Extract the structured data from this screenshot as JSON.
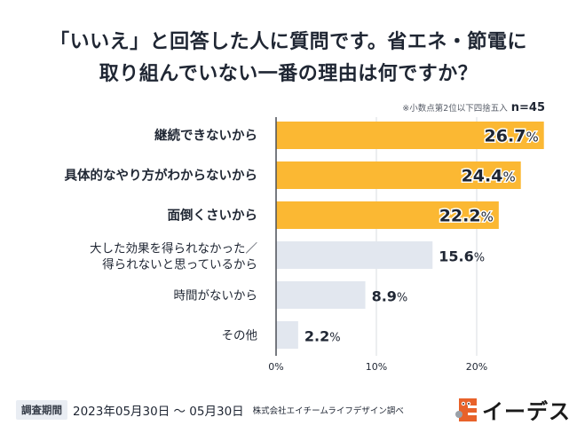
{
  "title": {
    "line1": "「いいえ」と回答した人に質問です。省エネ・節電に",
    "line2": "取り組んでいない一番の理由は何ですか？"
  },
  "note": {
    "rounding": "※小数点第2位以下四捨五入",
    "n": "n=45"
  },
  "colors": {
    "highlight": "#FBB833",
    "normal": "#E2E7EF",
    "text": "#1F2633",
    "axis": "#4a4f57",
    "grid": "#d9dce1"
  },
  "chart_data": {
    "type": "bar",
    "orientation": "horizontal",
    "title": "「いいえ」と回答した人に質問です。省エネ・節電に取り組んでいない一番の理由は何ですか？",
    "categories": [
      [
        "継続できないから"
      ],
      [
        "具体的なやり方がわからないから"
      ],
      [
        "面倒くさいから"
      ],
      [
        "大した効果を得られなかった／",
        "得られないと思っているから"
      ],
      [
        "時間がないから"
      ],
      [
        "その他"
      ]
    ],
    "values": [
      26.7,
      24.4,
      22.2,
      15.6,
      8.9,
      2.2
    ],
    "highlighted": [
      true,
      true,
      true,
      false,
      false,
      false
    ],
    "value_suffix": "%",
    "xlim": [
      0,
      27
    ],
    "xticks": [
      0,
      10,
      20
    ],
    "xtick_labels": [
      "0%",
      "10%",
      "20%"
    ],
    "grid": true,
    "xlabel": "",
    "ylabel": ""
  },
  "footer": {
    "badge": "調査期間",
    "period": "2023年05月30日 〜 05月30日",
    "source": "株式会社エイチームライフデザイン調べ"
  },
  "logo": {
    "icon": "e-des-mascot-icon",
    "text": "イーデス",
    "color": "#E8622A"
  }
}
